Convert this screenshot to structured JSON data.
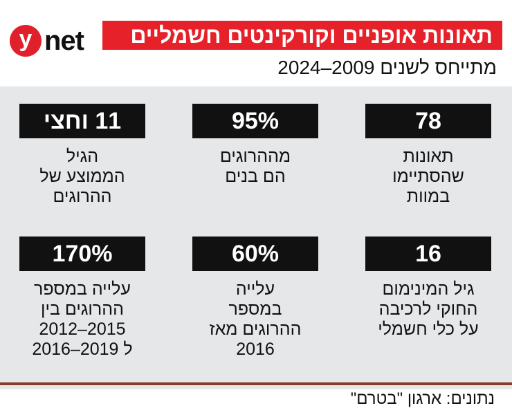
{
  "logo": {
    "y": "y",
    "net": "net"
  },
  "title": "תאונות אופניים וקורקינטים חשמליים",
  "subtitle": "מתייחס לשנים 2009–2024",
  "stats": [
    {
      "value": "78",
      "label": [
        "תאונות",
        "שהסתיימו",
        "במוות"
      ]
    },
    {
      "value": "95%",
      "label": [
        "מההרוגים",
        "הם בנים"
      ]
    },
    {
      "value": "11 וחצי",
      "label": [
        "הגיל",
        "הממוצע של",
        "ההרוגים"
      ]
    },
    {
      "value": "16",
      "label": [
        "גיל המינימום",
        "החוקי לרכיבה",
        "על כלי חשמלי"
      ]
    },
    {
      "value": "60%",
      "label": [
        "עלייה",
        "במספר",
        "ההרוגים מאז",
        "2016"
      ]
    },
    {
      "value": "170%",
      "label": [
        "עלייה במספר",
        "ההרוגים בין",
        "2015–2012",
        "ל 2019–2016"
      ]
    }
  ],
  "source": "נתונים: ארגון \"בטרם\"",
  "colors": {
    "accent": "#e62129",
    "panel": "#e6e7e8",
    "box": "#111111"
  }
}
